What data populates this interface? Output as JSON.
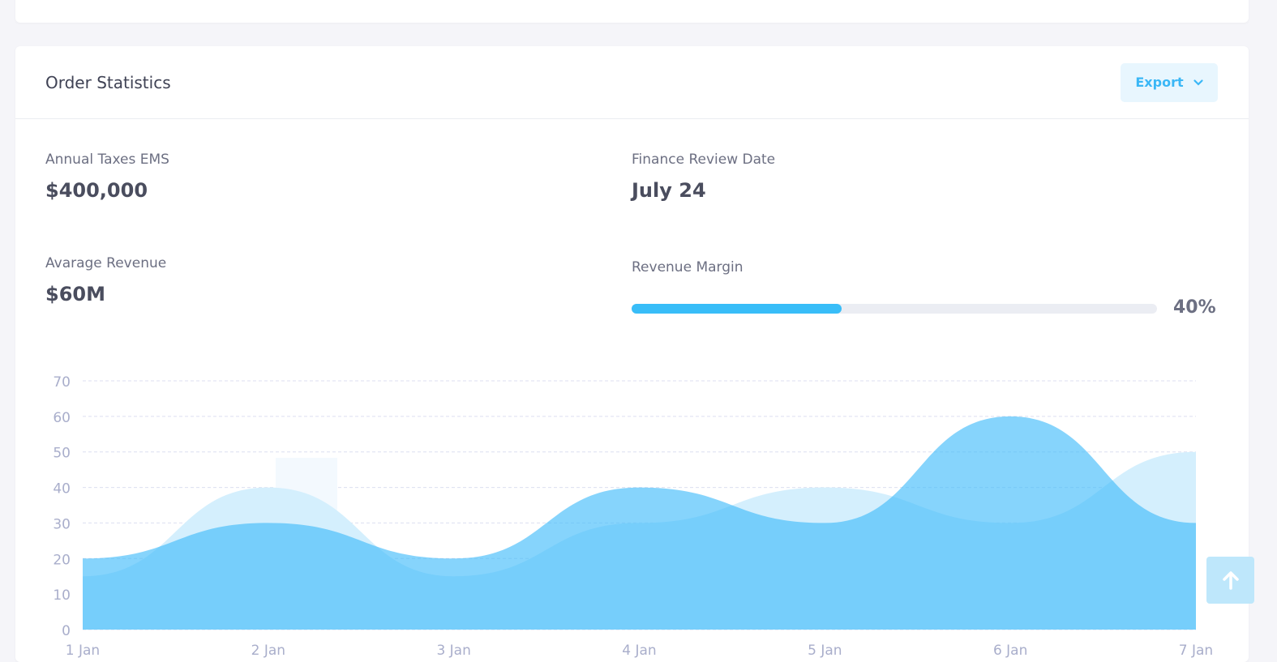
{
  "card": {
    "title": "Order Statistics",
    "export_label": "Export"
  },
  "stats": {
    "annual_taxes": {
      "label": "Annual Taxes EMS",
      "value": "$400,000"
    },
    "review_date": {
      "label": "Finance Review Date",
      "value": "July 24"
    },
    "avg_revenue": {
      "label": "Avarage Revenue",
      "value": "$60M"
    },
    "revenue_margin": {
      "label": "Revenue Margin",
      "value": "40%",
      "percent": 40
    }
  },
  "colors": {
    "accent": "#38bdf8",
    "series_dark": "#3cb9fa",
    "series_light": "#d4effd"
  },
  "chart_data": {
    "type": "area",
    "categories": [
      "1 Jan",
      "2 Jan",
      "3 Jan",
      "4 Jan",
      "5 Jan",
      "6 Jan",
      "7 Jan"
    ],
    "series": [
      {
        "values": [
          15,
          40,
          15,
          30,
          40,
          30,
          50
        ]
      },
      {
        "values": [
          20,
          30,
          20,
          40,
          30,
          60,
          30
        ]
      }
    ],
    "ylim": [
      0,
      70
    ],
    "yticks": [
      0,
      10,
      20,
      30,
      40,
      50,
      60,
      70
    ],
    "grid": true
  }
}
